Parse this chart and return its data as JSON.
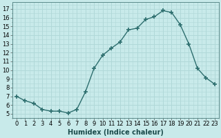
{
  "x": [
    0,
    1,
    2,
    3,
    4,
    5,
    6,
    7,
    8,
    9,
    10,
    11,
    12,
    13,
    14,
    15,
    16,
    17,
    18,
    19,
    20,
    21,
    22,
    23
  ],
  "y": [
    7,
    6.5,
    6.2,
    5.5,
    5.3,
    5.3,
    5.1,
    5.5,
    7.5,
    10.2,
    11.7,
    12.5,
    13.2,
    14.6,
    14.8,
    15.8,
    16.1,
    16.8,
    16.6,
    15.2,
    13.0,
    10.2,
    9.1,
    8.4
  ],
  "line_color": "#2d6e6e",
  "marker": "+",
  "marker_size": 4,
  "bg_color": "#c8eaea",
  "grid_color": "#b0d8d8",
  "xlabel": "Humidex (Indice chaleur)",
  "xlabel_fontsize": 7,
  "ylabel_ticks": [
    5,
    6,
    7,
    8,
    9,
    10,
    11,
    12,
    13,
    14,
    15,
    16,
    17
  ],
  "ylim": [
    4.5,
    17.8
  ],
  "xlim": [
    -0.5,
    23.5
  ],
  "xtick_labels": [
    "0",
    "1",
    "2",
    "3",
    "4",
    "5",
    "6",
    "7",
    "8",
    "9",
    "10",
    "11",
    "12",
    "13",
    "14",
    "15",
    "16",
    "17",
    "18",
    "19",
    "20",
    "21",
    "22",
    "23"
  ],
  "tick_fontsize": 6,
  "line_width": 1.0
}
